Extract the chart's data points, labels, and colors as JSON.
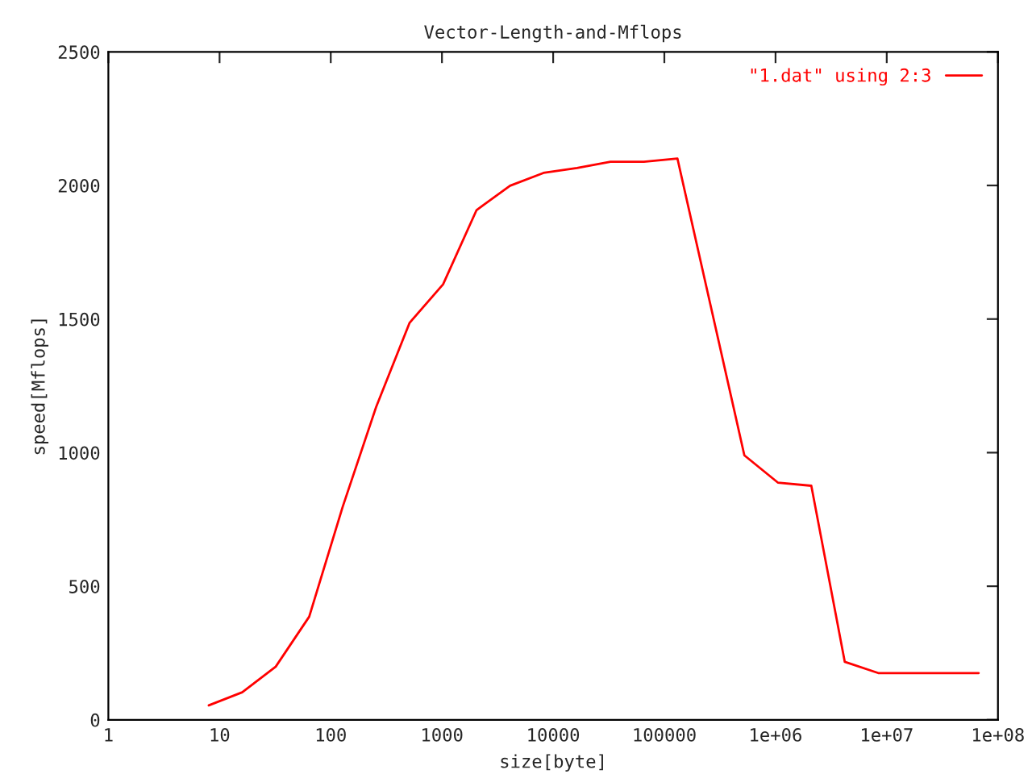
{
  "chart_data": {
    "type": "line",
    "title": "Vector-Length-and-Mflops",
    "xlabel": "size[byte]",
    "ylabel": "speed[Mflops]",
    "log": "x",
    "grid": false,
    "legend": "top right",
    "xlim": [
      1,
      100000000
    ],
    "ylim": [
      0,
      2500
    ],
    "xticks": [
      1,
      10,
      100,
      1000,
      10000,
      100000,
      {
        "value": 1000000,
        "label": "1e+06"
      },
      {
        "value": 10000000,
        "label": "1e+07"
      },
      {
        "value": 100000000,
        "label": "1e+08"
      }
    ],
    "yticks": [
      0,
      500,
      1000,
      1500,
      2000,
      2500
    ],
    "x": [
      8,
      16,
      32,
      64,
      128,
      256,
      512,
      1024,
      2048,
      4096,
      8192,
      16384,
      32768,
      65536,
      131072,
      262144,
      524288,
      1048576,
      2097152,
      4194304,
      8388608,
      16777216,
      33554432,
      67108864
    ],
    "series": [
      {
        "name": "\"1.dat\" using 2:3",
        "color": "#ff0000",
        "values": [
          54,
          103,
          199,
          386,
          797,
          1171,
          1486,
          1630,
          1908,
          1999,
          2047,
          2065,
          2089,
          2089,
          2101,
          1546,
          990,
          888,
          876,
          217,
          175,
          175,
          175,
          175
        ]
      }
    ]
  }
}
